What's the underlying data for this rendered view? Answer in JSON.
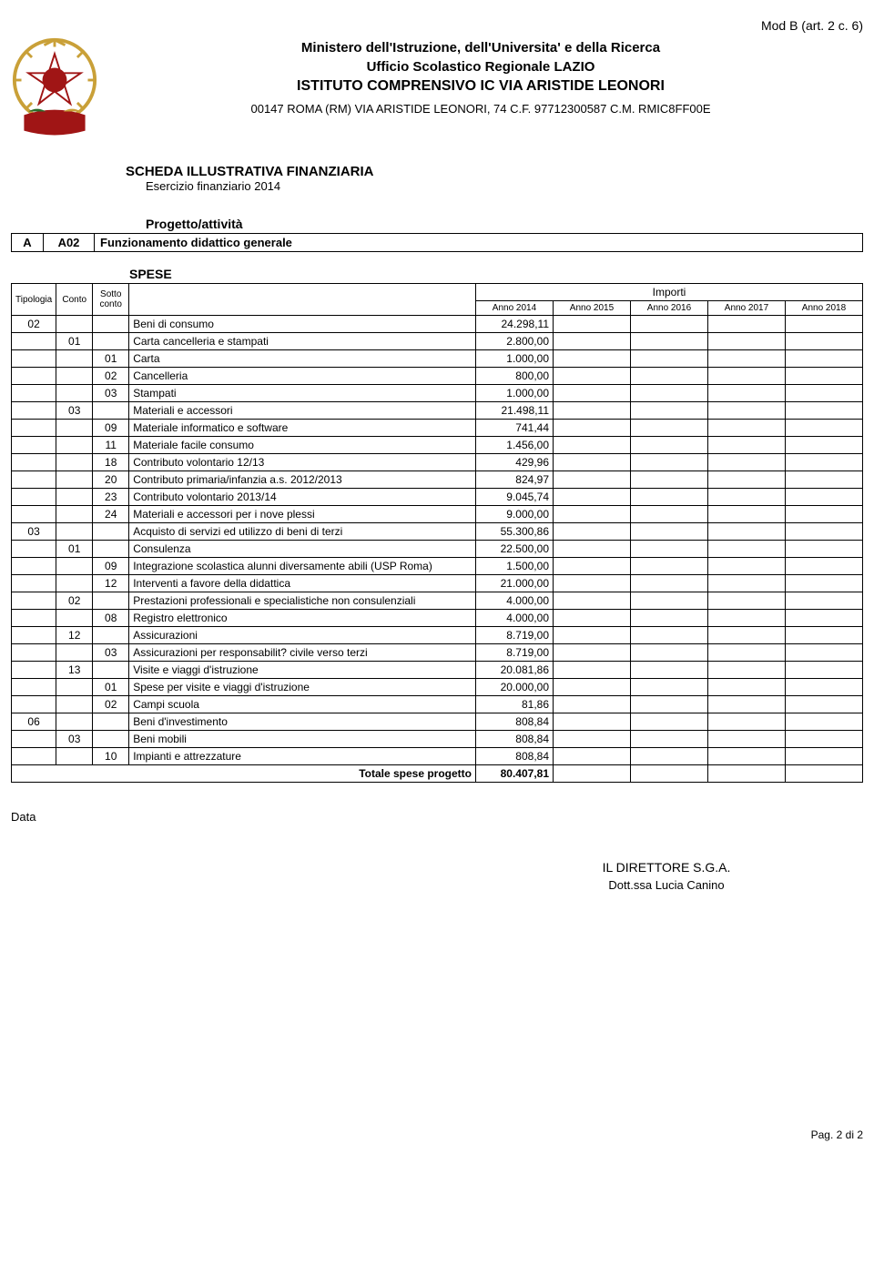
{
  "top_right": "Mod B (art. 2 c. 6)",
  "header": {
    "line1": "Ministero dell'Istruzione, dell'Universita' e della Ricerca",
    "line2": "Ufficio Scolastico Regionale LAZIO",
    "line3": "ISTITUTO COMPRENSIVO IC VIA ARISTIDE LEONORI",
    "line4": "00147 ROMA (RM) VIA  ARISTIDE LEONORI, 74 C.F. 97712300587 C.M. RMIC8FF00E"
  },
  "scheda": {
    "title": "SCHEDA ILLUSTRATIVA FINANZIARIA",
    "sub": "Esercizio finanziario 2014"
  },
  "progetto": {
    "label": "Progetto/attività",
    "col1": "A",
    "col2": "A02",
    "col3": "Funzionamento didattico generale"
  },
  "spese": {
    "label": "SPESE",
    "header_tipologia": "Tipologia",
    "header_conto": "Conto",
    "header_sotto": "Sotto conto",
    "header_importi": "Importi",
    "year_cols": [
      "Anno 2014",
      "Anno 2015",
      "Anno 2016",
      "Anno 2017",
      "Anno 2018"
    ],
    "rows": [
      {
        "tip": "02",
        "conto": "",
        "sotto": "",
        "desc": "Beni di consumo",
        "v": "24.298,11"
      },
      {
        "tip": "",
        "conto": "01",
        "sotto": "",
        "desc": "Carta cancelleria e stampati",
        "v": "2.800,00"
      },
      {
        "tip": "",
        "conto": "",
        "sotto": "01",
        "desc": "Carta",
        "v": "1.000,00"
      },
      {
        "tip": "",
        "conto": "",
        "sotto": "02",
        "desc": "Cancelleria",
        "v": "800,00"
      },
      {
        "tip": "",
        "conto": "",
        "sotto": "03",
        "desc": "Stampati",
        "v": "1.000,00"
      },
      {
        "tip": "",
        "conto": "03",
        "sotto": "",
        "desc": "Materiali e accessori",
        "v": "21.498,11"
      },
      {
        "tip": "",
        "conto": "",
        "sotto": "09",
        "desc": "Materiale informatico e software",
        "v": "741,44"
      },
      {
        "tip": "",
        "conto": "",
        "sotto": "11",
        "desc": "Materiale facile consumo",
        "v": "1.456,00"
      },
      {
        "tip": "",
        "conto": "",
        "sotto": "18",
        "desc": "Contributo volontario 12/13",
        "v": "429,96"
      },
      {
        "tip": "",
        "conto": "",
        "sotto": "20",
        "desc": "Contributo primaria/infanzia a.s. 2012/2013",
        "v": "824,97"
      },
      {
        "tip": "",
        "conto": "",
        "sotto": "23",
        "desc": "Contributo volontario 2013/14",
        "v": "9.045,74"
      },
      {
        "tip": "",
        "conto": "",
        "sotto": "24",
        "desc": "Materiali e accessori per i nove plessi",
        "v": "9.000,00"
      },
      {
        "tip": "03",
        "conto": "",
        "sotto": "",
        "desc": "Acquisto di servizi ed utilizzo di beni di terzi",
        "v": "55.300,86"
      },
      {
        "tip": "",
        "conto": "01",
        "sotto": "",
        "desc": "Consulenza",
        "v": "22.500,00"
      },
      {
        "tip": "",
        "conto": "",
        "sotto": "09",
        "desc": "Integrazione scolastica alunni diversamente abili (USP Roma)",
        "v": "1.500,00"
      },
      {
        "tip": "",
        "conto": "",
        "sotto": "12",
        "desc": "Interventi a favore della didattica",
        "v": "21.000,00"
      },
      {
        "tip": "",
        "conto": "02",
        "sotto": "",
        "desc": "Prestazioni professionali e specialistiche non consulenziali",
        "v": "4.000,00"
      },
      {
        "tip": "",
        "conto": "",
        "sotto": "08",
        "desc": "Registro elettronico",
        "v": "4.000,00"
      },
      {
        "tip": "",
        "conto": "12",
        "sotto": "",
        "desc": "Assicurazioni",
        "v": "8.719,00"
      },
      {
        "tip": "",
        "conto": "",
        "sotto": "03",
        "desc": "Assicurazioni per responsabilit? civile verso terzi",
        "v": "8.719,00"
      },
      {
        "tip": "",
        "conto": "13",
        "sotto": "",
        "desc": "Visite e viaggi d'istruzione",
        "v": "20.081,86"
      },
      {
        "tip": "",
        "conto": "",
        "sotto": "01",
        "desc": "Spese per visite e viaggi d'istruzione",
        "v": "20.000,00"
      },
      {
        "tip": "",
        "conto": "",
        "sotto": "02",
        "desc": "Campi scuola",
        "v": "81,86"
      },
      {
        "tip": "06",
        "conto": "",
        "sotto": "",
        "desc": "Beni d'investimento",
        "v": "808,84"
      },
      {
        "tip": "",
        "conto": "03",
        "sotto": "",
        "desc": "Beni mobili",
        "v": "808,84"
      },
      {
        "tip": "",
        "conto": "",
        "sotto": "10",
        "desc": "Impianti e attrezzature",
        "v": "808,84"
      }
    ],
    "total_label": "Totale spese progetto",
    "total_value": "80.407,81"
  },
  "data_label": "Data",
  "signature": {
    "t1": "IL DIRETTORE S.G.A.",
    "t2": "Dott.ssa Lucia Canino"
  },
  "footer": "Pag. 2 di 2",
  "colors": {
    "emblem_gold": "#c9a038",
    "emblem_red": "#a01515",
    "emblem_green": "#2a6d2a"
  }
}
